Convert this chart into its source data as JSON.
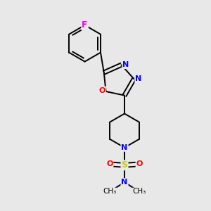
{
  "background_color": "#e8e8e8",
  "bond_color": "#000000",
  "atom_colors": {
    "F": "#ee00ee",
    "O": "#ff0000",
    "N": "#0000ff",
    "S": "#cccc00",
    "C": "#000000"
  },
  "figsize": [
    3.0,
    3.0
  ],
  "dpi": 100,
  "xlim": [
    0,
    10
  ],
  "ylim": [
    0,
    10
  ]
}
